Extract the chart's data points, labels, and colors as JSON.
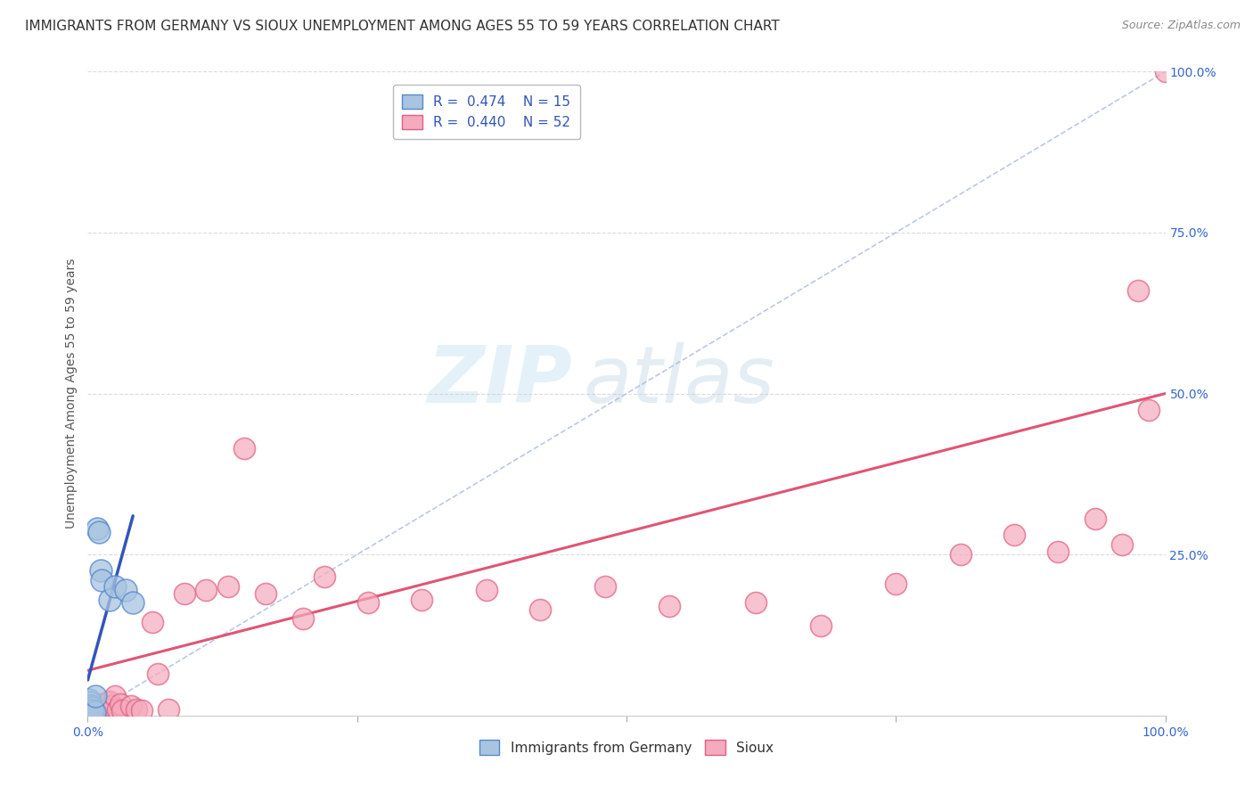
{
  "title": "IMMIGRANTS FROM GERMANY VS SIOUX UNEMPLOYMENT AMONG AGES 55 TO 59 YEARS CORRELATION CHART",
  "source": "Source: ZipAtlas.com",
  "ylabel": "Unemployment Among Ages 55 to 59 years",
  "xlim": [
    0,
    1.0
  ],
  "ylim": [
    0,
    1.0
  ],
  "ytick_labels_right": [
    "100.0%",
    "75.0%",
    "50.0%",
    "25.0%"
  ],
  "ytick_positions_right": [
    1.0,
    0.75,
    0.5,
    0.25
  ],
  "legend_label1": "Immigrants from Germany",
  "legend_label2": "Sioux",
  "blue_color": "#A8C4E0",
  "blue_edge_color": "#5588CC",
  "pink_color": "#F5AABD",
  "pink_edge_color": "#E06080",
  "blue_trend_color": "#3355BB",
  "pink_trend_color": "#E05575",
  "diag_color": "#AABBDD",
  "watermark_text": "ZIPatlas",
  "blue_R": 0.474,
  "blue_N": 15,
  "pink_R": 0.44,
  "pink_N": 52,
  "blue_points_x": [
    0.001,
    0.002,
    0.003,
    0.004,
    0.005,
    0.006,
    0.007,
    0.009,
    0.01,
    0.012,
    0.013,
    0.02,
    0.025,
    0.035,
    0.042
  ],
  "blue_points_y": [
    0.025,
    0.02,
    0.015,
    0.012,
    0.008,
    0.005,
    0.03,
    0.29,
    0.285,
    0.225,
    0.21,
    0.18,
    0.2,
    0.195,
    0.175
  ],
  "pink_points_x": [
    0.001,
    0.002,
    0.003,
    0.004,
    0.005,
    0.006,
    0.007,
    0.008,
    0.009,
    0.01,
    0.011,
    0.012,
    0.013,
    0.015,
    0.016,
    0.018,
    0.02,
    0.022,
    0.025,
    0.028,
    0.03,
    0.032,
    0.04,
    0.045,
    0.05,
    0.06,
    0.065,
    0.075,
    0.09,
    0.11,
    0.13,
    0.145,
    0.165,
    0.2,
    0.22,
    0.26,
    0.31,
    0.37,
    0.42,
    0.48,
    0.54,
    0.62,
    0.68,
    0.75,
    0.81,
    0.86,
    0.9,
    0.935,
    0.96,
    0.975,
    0.985,
    1.0
  ],
  "pink_points_y": [
    0.005,
    0.008,
    0.01,
    0.012,
    0.008,
    0.015,
    0.01,
    0.005,
    0.015,
    0.01,
    0.012,
    0.008,
    0.018,
    0.01,
    0.005,
    0.02,
    0.022,
    0.015,
    0.03,
    0.01,
    0.018,
    0.008,
    0.015,
    0.01,
    0.008,
    0.145,
    0.065,
    0.01,
    0.19,
    0.195,
    0.2,
    0.415,
    0.19,
    0.15,
    0.215,
    0.175,
    0.18,
    0.195,
    0.165,
    0.2,
    0.17,
    0.175,
    0.14,
    0.205,
    0.25,
    0.28,
    0.255,
    0.305,
    0.265,
    0.66,
    0.475,
    1.0
  ],
  "blue_line_x": [
    0.0,
    0.042
  ],
  "blue_line_y": [
    0.055,
    0.31
  ],
  "pink_line_x": [
    0.0,
    1.0
  ],
  "pink_line_y": [
    0.07,
    0.5
  ],
  "diag_line_x": [
    0.0,
    1.0
  ],
  "diag_line_y": [
    0.0,
    1.0
  ],
  "grid_color": "#CCCCCC",
  "background_color": "#FFFFFF",
  "title_fontsize": 11,
  "axis_label_fontsize": 10,
  "tick_fontsize": 10,
  "legend_fontsize": 11
}
